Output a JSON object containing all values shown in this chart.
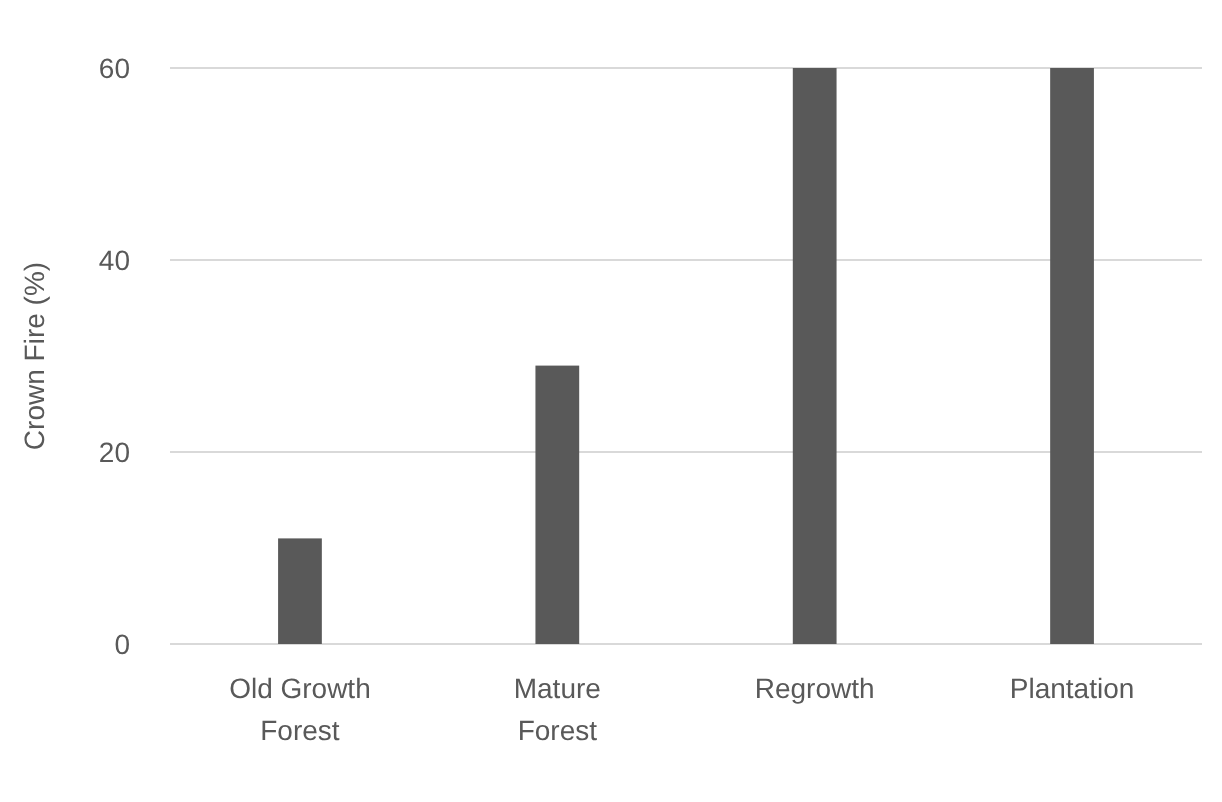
{
  "chart_data": {
    "type": "bar",
    "ylabel": "Crown Fire (%)",
    "categories": [
      "Old Growth Forest",
      "Mature Forest",
      "Regrowth",
      "Plantation"
    ],
    "values": [
      11,
      29,
      60,
      60
    ],
    "color": "#595959",
    "ylim": [
      0,
      60
    ],
    "yticks": [
      0,
      20,
      40,
      60
    ],
    "grid": "y"
  }
}
